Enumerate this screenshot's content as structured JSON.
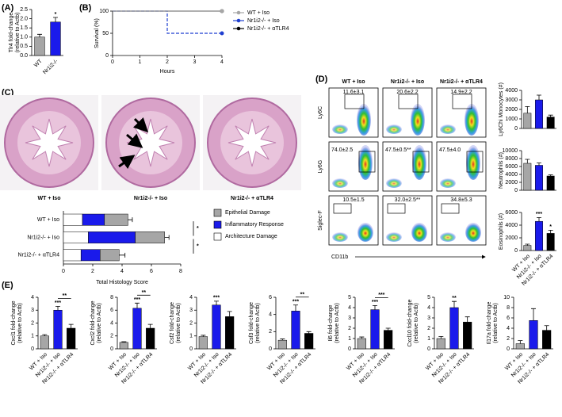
{
  "panels": [
    "(A)",
    "(B)",
    "(C)",
    "(D)",
    "(E)"
  ],
  "histology": {
    "captions": [
      "WT + Iso",
      "Nr1i2-/- + Iso",
      "Nr1i2-/- + αTLR4"
    ]
  },
  "flow": {
    "columns": [
      "WT + Iso",
      "Nr1i2-/- + Iso",
      "Nr1i2-/- + αTLR4"
    ],
    "rows": [
      "Ly6C",
      "Ly6G",
      "Siglec-F"
    ],
    "x_label": "CD11b",
    "gates": [
      [
        "11.6±3.1",
        "20.6±2.2",
        "14.9±2.2"
      ],
      [
        "74.0±2.5",
        "47.5±0.5**",
        "47.5±4.0"
      ],
      [
        "10.5±1.5",
        "32.0±2.5**",
        "34.8±5.3"
      ]
    ]
  },
  "chart_data": [
    {
      "type": "bar",
      "ylabel": [
        "Tlr4 fold-change",
        "(relative to Actb)"
      ],
      "categories": [
        "WT",
        "Nr1i2-/-"
      ],
      "values": [
        1.0,
        1.82
      ],
      "errors": [
        0.15,
        0.25
      ],
      "colors": [
        "#a6a6a6",
        "#1a1aeb"
      ],
      "ylim": [
        0,
        2.5
      ],
      "yticks": [
        {
          "value": 0,
          "label": "0.0"
        },
        {
          "value": 0.5,
          "label": "0.5"
        },
        {
          "value": 1,
          "label": "1.0"
        },
        {
          "value": 1.5,
          "label": "1.5"
        },
        {
          "value": 2,
          "label": "2.0"
        },
        {
          "value": 2.5,
          "label": "2.5"
        }
      ],
      "annotations": [
        "*"
      ]
    },
    {
      "type": "line",
      "xlabel": "Hours",
      "ylabel": "Survival (%)",
      "x": [
        0,
        2,
        2,
        4
      ],
      "series": [
        {
          "name": "WT + Iso",
          "color": "#a6a6a6",
          "values": [
            100,
            100,
            100,
            100
          ]
        },
        {
          "name": "Nr1i2-/- + Iso",
          "color": "#1f3fd0",
          "dashed": true,
          "values": [
            100,
            100,
            50,
            50
          ]
        },
        {
          "name": "Nr1i2-/- + αTLR4",
          "color": "#000000",
          "values": [
            100,
            100,
            100,
            100
          ]
        }
      ],
      "xlim": [
        0,
        4
      ],
      "xticks": [
        0,
        1,
        2,
        3,
        4
      ],
      "ylim": [
        0,
        100
      ],
      "yticks": [
        0,
        50,
        100
      ]
    },
    {
      "type": "stacked_bar_h",
      "xlabel": "Total Histology Score",
      "categories": [
        "WT + Iso",
        "Nr1i2-/- + Iso",
        "Nr1i2-/- + αTLR4"
      ],
      "series": [
        {
          "name": "Architecture Damage",
          "color": "#ffffff",
          "values": [
            1.3,
            1.7,
            1.2
          ]
        },
        {
          "name": "Inflammatory Response",
          "color": "#1a1aeb",
          "values": [
            1.5,
            3.2,
            1.3
          ]
        },
        {
          "name": "Epithelial Damage",
          "color": "#a6a6a6",
          "values": [
            1.6,
            2.0,
            1.3
          ],
          "errors": [
            0.3,
            0.3,
            0.4
          ]
        }
      ],
      "xlim": [
        0,
        8
      ],
      "xticks": [
        0,
        2,
        4,
        6,
        8
      ],
      "annotations": [
        "*",
        "*"
      ]
    },
    {
      "type": "bar",
      "ylabel": "Ly6Chi Monocytes (#)",
      "values": [
        1600,
        3000,
        1200
      ],
      "errors": [
        700,
        500,
        200
      ],
      "colors": [
        "#a6a6a6",
        "#1a1aeb",
        "#000000"
      ],
      "ylim": [
        0,
        4000
      ],
      "yticks": [
        0,
        1000,
        2000,
        3000,
        4000
      ]
    },
    {
      "type": "bar",
      "ylabel": "Neutrophils (#)",
      "values": [
        6800,
        6300,
        3600
      ],
      "errors": [
        1000,
        600,
        300
      ],
      "colors": [
        "#a6a6a6",
        "#1a1aeb",
        "#000000"
      ],
      "ylim": [
        0,
        10000
      ],
      "yticks": [
        0,
        2000,
        4000,
        6000,
        8000,
        10000
      ]
    },
    {
      "type": "bar",
      "ylabel": "Eosinophils (#)",
      "categories": [
        "WT + Iso",
        "Nr1i2-/- + Iso",
        "Nr1i2-/- + αTLR4"
      ],
      "values": [
        800,
        4600,
        2700
      ],
      "errors": [
        200,
        600,
        500
      ],
      "colors": [
        "#a6a6a6",
        "#1a1aeb",
        "#000000"
      ],
      "ylim": [
        0,
        6000
      ],
      "yticks": [
        0,
        2000,
        4000,
        6000
      ],
      "annotations": [
        "***",
        "*"
      ]
    },
    {
      "type": "bar",
      "ylabel": [
        "Cxcl1 fold-change",
        "(relative to Actb)"
      ],
      "categories": [
        "WT + Iso",
        "Nr1i2-/- + Iso",
        "Nr1i2-/- + αTLR4"
      ],
      "values": [
        1.0,
        3.0,
        1.6
      ],
      "errors": [
        0.1,
        0.3,
        0.3
      ],
      "colors": [
        "#a6a6a6",
        "#1a1aeb",
        "#000000"
      ],
      "ylim": [
        0,
        4
      ],
      "yticks": [
        0,
        1,
        2,
        3,
        4
      ],
      "annotations": [
        "***",
        "**"
      ]
    },
    {
      "type": "bar",
      "ylabel": [
        "Cxcl2 fold-change",
        "(relative to Actb)"
      ],
      "categories": [
        "WT + Iso",
        "Nr1i2-/- + Iso",
        "Nr1i2-/- + αTLR4"
      ],
      "values": [
        1.0,
        6.3,
        3.2
      ],
      "errors": [
        0.1,
        0.8,
        0.6
      ],
      "colors": [
        "#a6a6a6",
        "#1a1aeb",
        "#000000"
      ],
      "ylim": [
        0,
        8
      ],
      "yticks": [
        0,
        2,
        4,
        6,
        8
      ],
      "annotations": [
        "***",
        "**"
      ]
    },
    {
      "type": "bar",
      "ylabel": [
        "Csf2 fold-change",
        "(relative to Actb)"
      ],
      "categories": [
        "WT + Iso",
        "Nr1i2-/- + Iso",
        "Nr1i2-/- + αTLR4"
      ],
      "values": [
        0.95,
        3.4,
        2.5
      ],
      "errors": [
        0.1,
        0.3,
        0.4
      ],
      "colors": [
        "#a6a6a6",
        "#1a1aeb",
        "#000000"
      ],
      "ylim": [
        0,
        4
      ],
      "yticks": [
        0,
        1,
        2,
        3,
        4
      ],
      "annotations": [
        "***"
      ]
    },
    {
      "type": "bar",
      "ylabel": [
        "Csf3 fold-change",
        "(relative to Actb)"
      ],
      "categories": [
        "WT + Iso",
        "Nr1i2-/- + Iso",
        "Nr1i2-/- + αTLR4"
      ],
      "values": [
        1.0,
        4.4,
        1.8
      ],
      "errors": [
        0.15,
        0.7,
        0.2
      ],
      "colors": [
        "#a6a6a6",
        "#1a1aeb",
        "#000000"
      ],
      "ylim": [
        0,
        6
      ],
      "yticks": [
        0,
        2,
        4,
        6
      ],
      "annotations": [
        "***",
        "**"
      ]
    },
    {
      "type": "bar",
      "ylabel": [
        "Il6 fold-change",
        "(relative to Actb)"
      ],
      "categories": [
        "WT + Iso",
        "Nr1i2-/- + Iso",
        "Nr1i2-/- + αTLR4"
      ],
      "values": [
        1.0,
        3.8,
        1.8
      ],
      "errors": [
        0.15,
        0.4,
        0.2
      ],
      "colors": [
        "#a6a6a6",
        "#1a1aeb",
        "#000000"
      ],
      "ylim": [
        0,
        5
      ],
      "yticks": [
        0,
        1,
        2,
        3,
        4,
        5
      ],
      "annotations": [
        "***",
        "***"
      ]
    },
    {
      "type": "bar",
      "ylabel": [
        "Cxcl10 fold-change",
        "(relative to Actb)"
      ],
      "categories": [
        "WT + Iso",
        "Nr1i2-/- + Iso",
        "Nr1i2-/- + αTLR4"
      ],
      "values": [
        1.0,
        4.0,
        2.6
      ],
      "errors": [
        0.2,
        0.6,
        0.5
      ],
      "colors": [
        "#a6a6a6",
        "#1a1aeb",
        "#000000"
      ],
      "ylim": [
        0,
        5
      ],
      "yticks": [
        0,
        1,
        2,
        3,
        4,
        5
      ],
      "annotations": [
        "**"
      ]
    },
    {
      "type": "bar",
      "ylabel": [
        "Il17a fold-change",
        "(relative to Actb)"
      ],
      "categories": [
        "WT + Iso",
        "Nr1i2-/- + Iso",
        "Nr1i2-/- + αTLR4"
      ],
      "values": [
        1.0,
        5.5,
        3.6
      ],
      "errors": [
        0.6,
        2.3,
        0.9
      ],
      "colors": [
        "#a6a6a6",
        "#1a1aeb",
        "#000000"
      ],
      "ylim": [
        0,
        10
      ],
      "yticks": [
        0,
        2,
        4,
        6,
        8,
        10
      ]
    }
  ]
}
